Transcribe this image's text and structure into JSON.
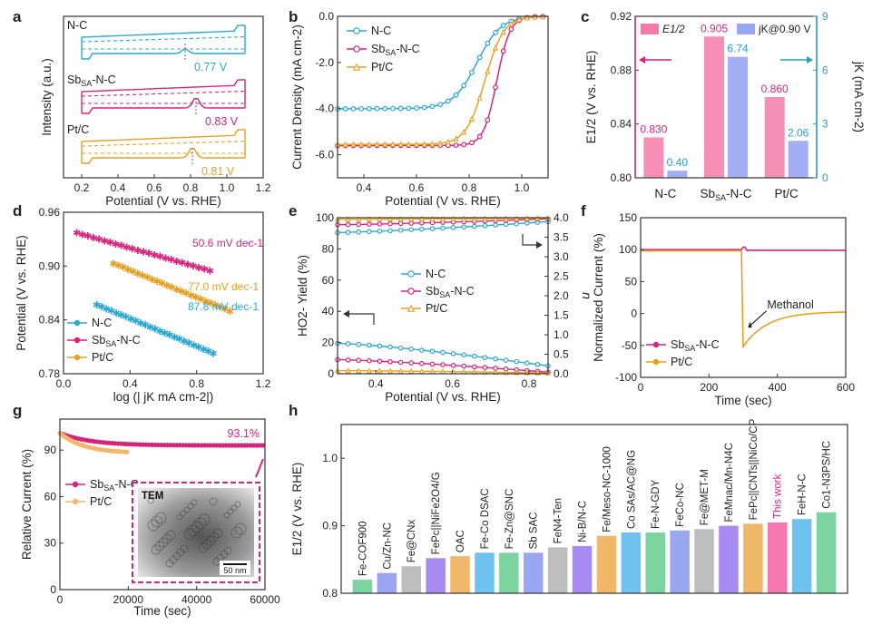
{
  "colors": {
    "nc": "#2ba7d6",
    "sb": "#d6247a",
    "pt": "#e6a024",
    "magenta": "#d6247a",
    "cyan": "#1fa3c9"
  },
  "chart_data": [
    {
      "panel_label": "a",
      "type": "line",
      "xlabel": "Potential (V vs. RHE)",
      "ylabel": "Intensity (a.u.)",
      "xlim": [
        0.1,
        1.2
      ],
      "xticks": [
        "0.2",
        "0.4",
        "0.6",
        "0.8",
        "1.0",
        "1.2"
      ],
      "series": [
        {
          "name": "N-C",
          "annotation": "0.77 V"
        },
        {
          "name": "SbSA-N-C",
          "annotation": "0.83 V"
        },
        {
          "name": "Pt/C",
          "annotation": "0.81 V"
        }
      ]
    },
    {
      "panel_label": "b",
      "type": "line",
      "xlabel": "Potential (V vs. RHE)",
      "ylabel": "Current Density (mA cm-2)",
      "xlim": [
        0.3,
        1.1
      ],
      "ylim": [
        -7,
        0
      ],
      "xticks": [
        "0.4",
        "0.6",
        "0.8",
        "1.0"
      ],
      "yticks": [
        "-6.0",
        "-4.0",
        "-2.0",
        "0.0"
      ],
      "series": [
        {
          "name": "N-C",
          "limiting": -4.0,
          "half_wave": 0.83
        },
        {
          "name": "SbSA-N-C",
          "limiting": -5.6,
          "half_wave": 0.905
        },
        {
          "name": "Pt/C",
          "limiting": -5.55,
          "half_wave": 0.86
        }
      ]
    },
    {
      "panel_label": "c",
      "type": "bar",
      "categories": [
        "N-C",
        "SbSA-N-C",
        "Pt/C"
      ],
      "ylabel": "E1/2 (V vs. RHE)",
      "y2label": "jK (mA cm-2)",
      "ylim": [
        0.8,
        0.92
      ],
      "yticks": [
        "0.80",
        "0.84",
        "0.88",
        "0.92"
      ],
      "y2lim": [
        0,
        9
      ],
      "y2ticks": [
        "0",
        "3",
        "6",
        "9"
      ],
      "series": [
        {
          "name": "E1/2",
          "values": [
            0.83,
            0.905,
            0.86
          ],
          "labels": [
            "0.830",
            "0.905",
            "0.860"
          ]
        },
        {
          "name": "jK@0.90 V",
          "values": [
            0.4,
            6.74,
            2.06
          ],
          "labels": [
            "0.40",
            "6.74",
            "2.06"
          ]
        }
      ]
    },
    {
      "panel_label": "d",
      "type": "scatter",
      "xlabel": "log (| jK mA cm-2|)",
      "ylabel": "Potential (V vs. RHE)",
      "xlim": [
        0,
        1.2
      ],
      "ylim": [
        0.78,
        0.96
      ],
      "xticks": [
        "0.0",
        "0.4",
        "0.8",
        "1.2"
      ],
      "yticks": [
        "0.78",
        "0.84",
        "0.90",
        "0.96"
      ],
      "series": [
        {
          "name": "N-C",
          "x": [
            0.2,
            0.9
          ],
          "y": [
            0.857,
            0.803
          ],
          "slope": "87.8 mV dec-1"
        },
        {
          "name": "SbSA-N-C",
          "x": [
            0.08,
            0.88
          ],
          "y": [
            0.937,
            0.895
          ],
          "slope": "50.6 mV dec-1"
        },
        {
          "name": "Pt/C",
          "x": [
            0.3,
            1.0
          ],
          "y": [
            0.903,
            0.85
          ],
          "slope": "77.0 mV dec-1"
        }
      ]
    },
    {
      "panel_label": "e",
      "type": "line",
      "xlabel": "Potential (V vs. RHE)",
      "ylabel": "HO2- Yield (%)",
      "y2label": "n",
      "xlim": [
        0.3,
        0.85
      ],
      "ylim": [
        0,
        100
      ],
      "y2lim": [
        0,
        4
      ],
      "xticks": [
        "0.4",
        "0.6",
        "0.8"
      ],
      "yticks": [
        "0",
        "20",
        "40",
        "60",
        "80",
        "100"
      ],
      "y2ticks": [
        "0.0",
        "0.5",
        "1.0",
        "1.5",
        "2.0",
        "2.5",
        "3.0",
        "3.5",
        "4.0"
      ],
      "series": [
        {
          "name": "N-C",
          "yield": [
            19.5,
            5
          ],
          "n": [
            3.62,
            3.9
          ]
        },
        {
          "name": "SbSA-N-C",
          "yield": [
            9,
            1
          ],
          "n": [
            3.82,
            3.97
          ]
        },
        {
          "name": "Pt/C",
          "yield": [
            2,
            0.5
          ],
          "n": [
            3.96,
            3.99
          ]
        }
      ]
    },
    {
      "panel_label": "f",
      "type": "line",
      "xlabel": "Time (sec)",
      "ylabel": "Normalized Current (%)",
      "xlim": [
        0,
        600
      ],
      "ylim": [
        -100,
        150
      ],
      "xticks": [
        "0",
        "200",
        "400",
        "600"
      ],
      "yticks": [
        "-100",
        "-50",
        "0",
        "50",
        "100",
        "150"
      ],
      "annotation": "Methanol",
      "series": [
        {
          "name": "SbSA-N-C"
        },
        {
          "name": "Pt/C"
        }
      ]
    },
    {
      "panel_label": "g",
      "type": "scatter",
      "xlabel": "Time (sec)",
      "ylabel": "Relative Current (%)",
      "xlim": [
        0,
        60000
      ],
      "ylim": [
        0,
        110
      ],
      "xticks": [
        "0",
        "20000",
        "40000",
        "60000"
      ],
      "yticks": [
        "0",
        "30",
        "60",
        "90"
      ],
      "annotation": "93.1%",
      "inset_label": "TEM",
      "scale_bar": "50 nm",
      "series": [
        {
          "name": "SbSA-N-C",
          "end_value": 93.1
        },
        {
          "name": "Pt/C",
          "end_value": 88
        }
      ]
    },
    {
      "panel_label": "h",
      "type": "bar",
      "ylabel": "E1/2 (V vs. RHE)",
      "ylim": [
        0.8,
        1.05
      ],
      "yticks": [
        "0.8",
        "0.9",
        "1.0"
      ],
      "categories": [
        "Fe-COF900",
        "Cu/Zn-NC",
        "Fe@CNx",
        "FePc||NiFe2O4/G",
        "OAC",
        "Fe-Co DSAC",
        "Fe-Zn@SNC",
        "Sb SAC",
        "FeN4-Ten",
        "Ni-B/N-C",
        "Fe/Meso-NC-1000",
        "Co SAs/AC@NG",
        "Fe-N-GDY",
        "FeCo-NC",
        "Fe@MET-M",
        "FeMnac/Mn-N4C",
        "FePc||CNTs||NiCo/CP",
        "This work",
        "FeH-N-C",
        "Co1-N3PS/HC"
      ],
      "values": [
        0.82,
        0.83,
        0.84,
        0.852,
        0.855,
        0.86,
        0.86,
        0.86,
        0.868,
        0.87,
        0.885,
        0.89,
        0.89,
        0.893,
        0.895,
        0.9,
        0.903,
        0.905,
        0.91,
        0.92
      ]
    }
  ]
}
